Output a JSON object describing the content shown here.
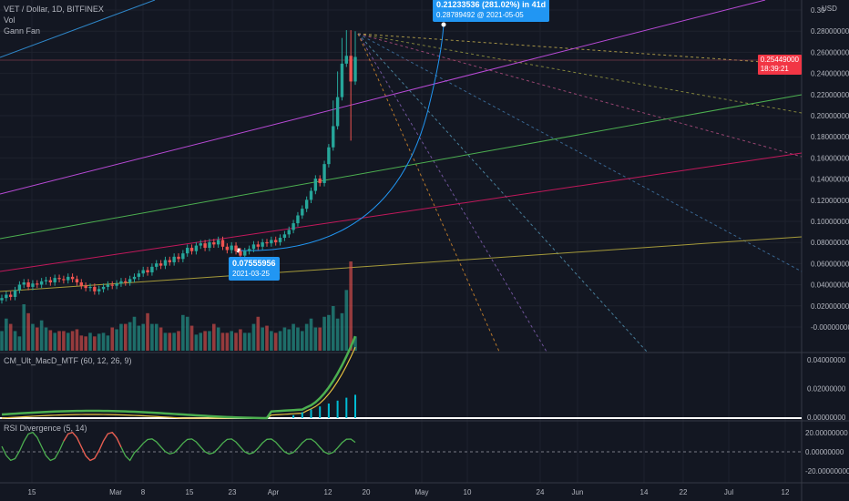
{
  "header": {
    "symbol": "VET / Dollar, 1D, BITFINEX",
    "vol": "Vol",
    "fan": "Gann Fan",
    "currency": "USD"
  },
  "price": {
    "current": "0.25449000",
    "countdown": "18:39:21"
  },
  "annotations": {
    "top_main": "0.21233536 (281.02%) in 41d",
    "top_sub": "0.28789492 @ 2021-05-05",
    "low_main": "0.07555956",
    "low_sub": "2021-03-25"
  },
  "panels": {
    "macd": "CM_Ult_MacD_MTF (60, 12, 26, 9)",
    "rsi": "RSI Divergence (5, 14)"
  },
  "colors": {
    "background": "#131722",
    "up": "#26a69a",
    "down": "#ef5350",
    "accent": "#2196f3",
    "price_tag": "#f23645"
  },
  "chart_data": [
    {
      "type": "candlestick",
      "title": "VET / Dollar, 1D, BITFINEX",
      "x_ticks": [
        "15",
        "Mar",
        "8",
        "15",
        "23",
        "Apr",
        "12",
        "20",
        "May",
        "10",
        "24",
        "Jun",
        "14",
        "22",
        "Jul",
        "12"
      ],
      "y_ticks": [
        "0.30",
        "0.28000000",
        "0.26000000",
        "0.24000000",
        "0.22000000",
        "0.20000000",
        "0.18000000",
        "0.16000000",
        "0.14000000",
        "0.12000000",
        "0.10000000",
        "0.08000000",
        "0.06000000",
        "0.04000000",
        "0.02000000",
        "-0.00000000"
      ],
      "ylim": [
        -0.01,
        0.305
      ],
      "closes": [
        0.038,
        0.041,
        0.039,
        0.045,
        0.05,
        0.052,
        0.048,
        0.051,
        0.05,
        0.053,
        0.054,
        0.052,
        0.056,
        0.055,
        0.054,
        0.057,
        0.055,
        0.052,
        0.049,
        0.047,
        0.048,
        0.044,
        0.046,
        0.048,
        0.05,
        0.049,
        0.051,
        0.053,
        0.052,
        0.055,
        0.057,
        0.06,
        0.063,
        0.061,
        0.066,
        0.069,
        0.067,
        0.072,
        0.07,
        0.075,
        0.073,
        0.078,
        0.083,
        0.08,
        0.085,
        0.087,
        0.083,
        0.088,
        0.086,
        0.09,
        0.084,
        0.081,
        0.085,
        0.08,
        0.076,
        0.08,
        0.082,
        0.086,
        0.084,
        0.088,
        0.087,
        0.09,
        0.088,
        0.092,
        0.095,
        0.099,
        0.105,
        0.112,
        0.118,
        0.126,
        0.134,
        0.145,
        0.141,
        0.158,
        0.173,
        0.192,
        0.218,
        0.248,
        0.255,
        0.232,
        0.254
      ],
      "volume": [
        0.22,
        0.36,
        0.3,
        0.22,
        0.16,
        0.52,
        0.42,
        0.3,
        0.26,
        0.34,
        0.26,
        0.23,
        0.2,
        0.22,
        0.22,
        0.2,
        0.22,
        0.24,
        0.17,
        0.16,
        0.2,
        0.16,
        0.19,
        0.2,
        0.17,
        0.26,
        0.24,
        0.3,
        0.3,
        0.32,
        0.38,
        0.28,
        0.3,
        0.42,
        0.3,
        0.3,
        0.26,
        0.2,
        0.2,
        0.2,
        0.22,
        0.4,
        0.38,
        0.28,
        0.18,
        0.2,
        0.22,
        0.22,
        0.3,
        0.26,
        0.2,
        0.2,
        0.22,
        0.2,
        0.24,
        0.2,
        0.2,
        0.3,
        0.38,
        0.26,
        0.28,
        0.22,
        0.2,
        0.22,
        0.26,
        0.24,
        0.3,
        0.26,
        0.22,
        0.3,
        0.36,
        0.26,
        0.26,
        0.38,
        0.4,
        0.5,
        0.36,
        0.42,
        0.68,
        1.0,
        0.16
      ]
    },
    {
      "type": "line",
      "title": "CM_Ult_MacD_MTF (60, 12, 26, 9)",
      "y_ticks": [
        "0.04000000",
        "0.02000000",
        "0.00000000"
      ],
      "ylim": [
        -0.003,
        0.045
      ]
    },
    {
      "type": "line",
      "title": "RSI Divergence (5, 14)",
      "y_ticks": [
        "20.00000000",
        "0.00000000",
        "-20.00000000"
      ],
      "ylim": [
        -30,
        25
      ]
    }
  ]
}
